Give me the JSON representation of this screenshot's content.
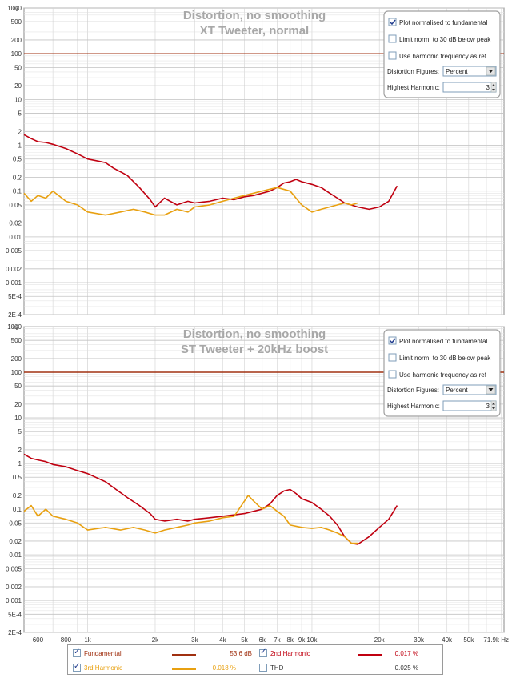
{
  "charts": [
    {
      "title_line1": "Distortion, no smoothing",
      "title_line2": "XT Tweeter, normal",
      "controls": {
        "plot_normalised": {
          "label": "Plot normalised to fundamental",
          "checked": true
        },
        "limit_norm": {
          "label": "Limit norm. to 30 dB below peak",
          "checked": false
        },
        "use_harmonic": {
          "label": "Use harmonic frequency as ref",
          "checked": false
        },
        "distortion_figures_label": "Distortion Figures:",
        "distortion_figures_value": "Percent",
        "highest_harmonic_label": "Highest Harmonic:",
        "highest_harmonic_value": "3"
      }
    },
    {
      "title_line1": "Distortion, no smoothing",
      "title_line2": "ST Tweeter + 20kHz boost",
      "controls": {
        "plot_normalised": {
          "label": "Plot normalised to fundamental",
          "checked": true
        },
        "limit_norm": {
          "label": "Limit norm. to 30 dB below peak",
          "checked": false
        },
        "use_harmonic": {
          "label": "Use harmonic frequency as ref",
          "checked": false
        },
        "distortion_figures_label": "Distortion Figures:",
        "distortion_figures_value": "Percent",
        "highest_harmonic_label": "Highest Harmonic:",
        "highest_harmonic_value": "3"
      }
    }
  ],
  "y_tick_labels": [
    "%",
    "1000",
    "500",
    "200",
    "100",
    "50",
    "20",
    "10",
    "5",
    "2",
    "1",
    "0.5",
    "0.2",
    "0.1",
    "0.05",
    "0.02",
    "0.01",
    "0.005",
    "0.002",
    "0.001",
    "5E-4",
    "2E-4"
  ],
  "x_tick_labels": [
    "600",
    "800",
    "1k",
    "2k",
    "3k",
    "4k",
    "5k",
    "6k",
    "7k",
    "8k",
    "9k",
    "10k",
    "20k",
    "30k",
    "40k",
    "50k",
    "71.9k Hz"
  ],
  "legend": {
    "fundamental": {
      "label": "Fundamental",
      "value": "53.6 dB",
      "color": "#a03010",
      "checked": true
    },
    "h2": {
      "label": "2nd Harmonic",
      "value": "0.017 %",
      "color": "#c00010",
      "checked": true
    },
    "h3": {
      "label": "3rd Harmonic",
      "value": "0.018 %",
      "color": "#e8a010",
      "checked": true
    },
    "thd": {
      "label": "THD",
      "value": "0.025 %",
      "checked": false
    }
  },
  "chart_data": [
    {
      "type": "line",
      "title": "Distortion, no smoothing — XT Tweeter, normal",
      "x_scale": "log",
      "y_scale": "log",
      "xlim": [
        520,
        71900
      ],
      "ylim": [
        0.0002,
        1000
      ],
      "series": [
        {
          "name": "Fundamental",
          "color": "#a03010",
          "x": [
            520,
            71900
          ],
          "y": [
            100,
            100
          ]
        },
        {
          "name": "2nd Harmonic",
          "color": "#c00010",
          "x": [
            520,
            560,
            600,
            650,
            700,
            800,
            900,
            1000,
            1200,
            1300,
            1500,
            1700,
            1900,
            2000,
            2200,
            2500,
            2800,
            3000,
            3500,
            4000,
            4500,
            5000,
            5500,
            6000,
            6500,
            7000,
            7500,
            8000,
            8500,
            9000,
            10000,
            11000,
            12000,
            13000,
            14000,
            16000,
            18000,
            20000,
            22000,
            24000
          ],
          "y": [
            1.7,
            1.4,
            1.2,
            1.15,
            1.05,
            0.85,
            0.65,
            0.5,
            0.42,
            0.32,
            0.22,
            0.12,
            0.065,
            0.045,
            0.07,
            0.05,
            0.06,
            0.055,
            0.06,
            0.07,
            0.065,
            0.075,
            0.08,
            0.09,
            0.1,
            0.12,
            0.15,
            0.16,
            0.18,
            0.16,
            0.14,
            0.12,
            0.09,
            0.07,
            0.055,
            0.045,
            0.04,
            0.045,
            0.06,
            0.13
          ]
        },
        {
          "name": "3rd Harmonic",
          "color": "#e8a010",
          "x": [
            520,
            560,
            600,
            650,
            700,
            800,
            900,
            1000,
            1200,
            1400,
            1600,
            1800,
            2000,
            2200,
            2500,
            2800,
            3000,
            3500,
            4000,
            4500,
            5000,
            5500,
            6000,
            6500,
            7000,
            8000,
            9000,
            10000,
            11000,
            12000,
            13000,
            14000,
            15000,
            16000
          ],
          "y": [
            0.09,
            0.06,
            0.08,
            0.07,
            0.1,
            0.06,
            0.05,
            0.035,
            0.03,
            0.035,
            0.04,
            0.035,
            0.03,
            0.03,
            0.04,
            0.035,
            0.045,
            0.05,
            0.06,
            0.07,
            0.08,
            0.09,
            0.1,
            0.11,
            0.12,
            0.1,
            0.05,
            0.035,
            0.04,
            0.045,
            0.05,
            0.055,
            0.05,
            0.055
          ]
        }
      ]
    },
    {
      "type": "line",
      "title": "Distortion, no smoothing — ST Tweeter + 20kHz boost",
      "x_scale": "log",
      "y_scale": "log",
      "xlim": [
        520,
        71900
      ],
      "ylim": [
        0.0002,
        1000
      ],
      "series": [
        {
          "name": "Fundamental",
          "color": "#a03010",
          "x": [
            520,
            71900
          ],
          "y": [
            100,
            100
          ]
        },
        {
          "name": "2nd Harmonic",
          "color": "#c00010",
          "x": [
            520,
            560,
            600,
            650,
            700,
            800,
            900,
            1000,
            1200,
            1300,
            1500,
            1700,
            1900,
            2000,
            2200,
            2500,
            2800,
            3000,
            3500,
            4000,
            4500,
            5000,
            5500,
            6000,
            6500,
            7000,
            7500,
            8000,
            8500,
            9000,
            10000,
            11000,
            12000,
            13000,
            14000,
            15000,
            16000,
            18000,
            20000,
            22000,
            24000
          ],
          "y": [
            1.6,
            1.3,
            1.2,
            1.1,
            0.95,
            0.85,
            0.7,
            0.6,
            0.4,
            0.3,
            0.18,
            0.12,
            0.08,
            0.06,
            0.055,
            0.06,
            0.055,
            0.06,
            0.065,
            0.07,
            0.075,
            0.08,
            0.09,
            0.1,
            0.13,
            0.2,
            0.25,
            0.27,
            0.22,
            0.17,
            0.14,
            0.1,
            0.07,
            0.045,
            0.025,
            0.018,
            0.017,
            0.025,
            0.04,
            0.06,
            0.12
          ]
        },
        {
          "name": "3rd Harmonic",
          "color": "#e8a010",
          "x": [
            520,
            560,
            600,
            650,
            700,
            800,
            900,
            1000,
            1200,
            1400,
            1600,
            1800,
            2000,
            2200,
            2500,
            2800,
            3000,
            3500,
            4000,
            4500,
            5000,
            5200,
            5500,
            6000,
            6500,
            7000,
            7500,
            8000,
            9000,
            10000,
            11000,
            12000,
            13000,
            14000,
            15000,
            16000
          ],
          "y": [
            0.09,
            0.12,
            0.07,
            0.1,
            0.07,
            0.06,
            0.05,
            0.035,
            0.04,
            0.035,
            0.04,
            0.035,
            0.03,
            0.035,
            0.04,
            0.045,
            0.05,
            0.055,
            0.065,
            0.07,
            0.15,
            0.2,
            0.15,
            0.1,
            0.12,
            0.09,
            0.07,
            0.045,
            0.04,
            0.038,
            0.04,
            0.035,
            0.03,
            0.025,
            0.018,
            0.018
          ]
        }
      ]
    }
  ]
}
